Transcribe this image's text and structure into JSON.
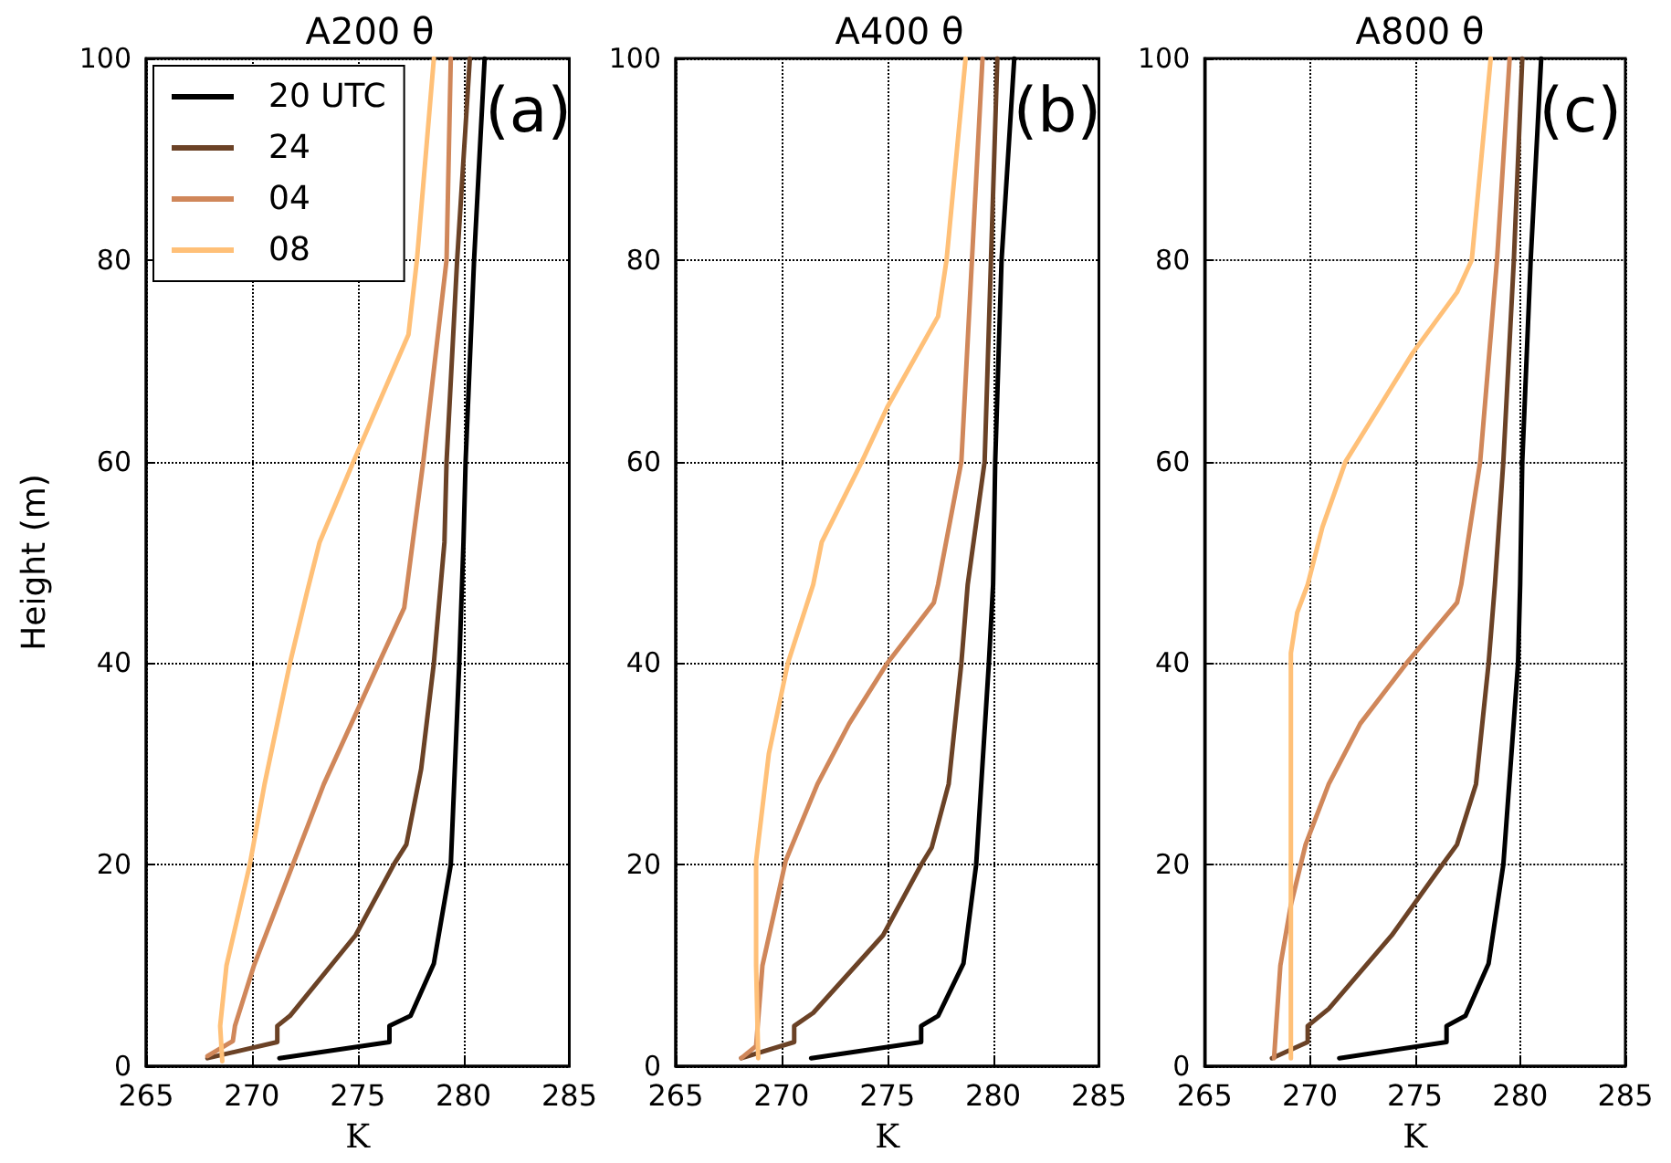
{
  "chart_data": [
    {
      "type": "line",
      "title": "A200 θ",
      "xlabel": "K",
      "ylabel": "Height (m)",
      "annotations": [
        "(a)"
      ],
      "xlim": [
        265,
        285
      ],
      "xticks": [
        265,
        270,
        275,
        280,
        285
      ],
      "ylim": [
        0,
        100
      ],
      "yticks": [
        0,
        20,
        40,
        60,
        80,
        100
      ],
      "grid": true,
      "legend": "top left",
      "line_style": "solid",
      "marker": "none",
      "series": [
        {
          "name": "20 UTC",
          "color": "#000000",
          "x": [
            271.3,
            276.5,
            276.5,
            277.5,
            278.6,
            279.4,
            279.8,
            280.0,
            280.1,
            280.5,
            281.0
          ],
          "values": [
            0.8,
            2.4,
            4,
            5,
            10.2,
            20,
            40,
            52,
            60,
            80,
            100
          ]
        },
        {
          "name": "24",
          "color": "#6b4226",
          "x": [
            267.9,
            271.2,
            271.2,
            271.8,
            274.9,
            276.7,
            277.3,
            278.0,
            278.6,
            279.1,
            279.2,
            279.7,
            280.3
          ],
          "values": [
            0.8,
            2.4,
            4,
            5,
            13,
            20,
            22,
            29.5,
            40,
            52,
            60,
            80,
            100
          ]
        },
        {
          "name": "04",
          "color": "#d0875a",
          "x": [
            267.9,
            269.1,
            269.2,
            270.1,
            271.2,
            273.4,
            276.0,
            277.2,
            277.6,
            278.1,
            279.2,
            279.4
          ],
          "values": [
            1,
            2.5,
            4,
            10,
            16,
            28,
            40,
            45.5,
            52,
            60,
            80,
            100
          ]
        },
        {
          "name": "08",
          "color": "#ffc078",
          "x": [
            268.6,
            268.5,
            268.8,
            269.9,
            270.6,
            271.8,
            272.6,
            273.2,
            274.8,
            277.4,
            277.8,
            278.6
          ],
          "values": [
            0.5,
            4,
            10,
            20,
            28,
            40,
            47,
            52,
            60,
            72.6,
            80,
            100
          ]
        }
      ]
    },
    {
      "type": "line",
      "title": "A400 θ",
      "xlabel": "K",
      "annotations": [
        "(b)"
      ],
      "xlim": [
        265,
        285
      ],
      "xticks": [
        265,
        270,
        275,
        280,
        285
      ],
      "ylim": [
        0,
        100
      ],
      "yticks": [
        0,
        20,
        40,
        60,
        80,
        100
      ],
      "grid": true,
      "line_style": "solid",
      "marker": "none",
      "series": [
        {
          "color": "#000000",
          "x": [
            271.4,
            276.6,
            276.6,
            277.4,
            278.6,
            279.2,
            279.8,
            280.0,
            280.1,
            280.4,
            281.0
          ],
          "values": [
            0.8,
            2.4,
            4,
            5,
            10.2,
            20,
            40,
            47.8,
            60,
            80,
            100
          ]
        },
        {
          "color": "#6b4226",
          "x": [
            268.1,
            270.6,
            270.6,
            271.5,
            274.8,
            276.6,
            277.1,
            277.9,
            278.5,
            278.8,
            279.6,
            279.9,
            280.2
          ],
          "values": [
            0.8,
            2.4,
            4,
            5.3,
            13,
            20,
            21.7,
            28,
            40,
            47.8,
            60,
            80,
            100
          ]
        },
        {
          "color": "#d0875a",
          "x": [
            268.1,
            268.8,
            269.1,
            270.2,
            271.7,
            273.2,
            275.0,
            277.2,
            277.4,
            278.5,
            279.0,
            279.5
          ],
          "values": [
            0.8,
            2,
            10,
            20.4,
            28,
            34,
            40,
            46,
            47.8,
            60,
            80,
            100
          ]
        },
        {
          "color": "#ffc078",
          "x": [
            268.9,
            268.8,
            268.8,
            269.4,
            270.3,
            271.5,
            271.9,
            273.8,
            275.0,
            277.4,
            277.8,
            278.7
          ],
          "values": [
            0.8,
            10,
            20.4,
            31,
            40,
            47.8,
            52,
            60,
            65.4,
            74.4,
            80,
            100
          ]
        }
      ]
    },
    {
      "type": "line",
      "title": "A800 θ",
      "xlabel": "K",
      "annotations": [
        "(c)"
      ],
      "xlim": [
        265,
        285
      ],
      "xticks": [
        265,
        270,
        275,
        280,
        285
      ],
      "ylim": [
        0,
        100
      ],
      "yticks": [
        0,
        20,
        40,
        60,
        80,
        100
      ],
      "grid": true,
      "line_style": "solid",
      "marker": "none",
      "series": [
        {
          "color": "#000000",
          "x": [
            271.4,
            276.5,
            276.5,
            277.4,
            278.5,
            279.2,
            279.9,
            280.0,
            280.1,
            280.5,
            281.0
          ],
          "values": [
            0.8,
            2.4,
            4,
            5,
            10.2,
            20,
            40,
            47.8,
            60,
            80,
            100
          ]
        },
        {
          "color": "#6b4226",
          "x": [
            268.2,
            269.9,
            269.9,
            270.9,
            273.9,
            276.3,
            277.0,
            277.9,
            278.5,
            278.8,
            279.2,
            279.7,
            280.1
          ],
          "values": [
            0.8,
            2.4,
            4,
            5.7,
            13,
            20,
            22,
            28,
            40,
            47.8,
            60,
            80,
            100
          ]
        },
        {
          "color": "#d0875a",
          "x": [
            268.3,
            268.4,
            268.6,
            269.1,
            269.8,
            270.9,
            272.4,
            274.6,
            277.0,
            277.2,
            278.1,
            278.9,
            279.5
          ],
          "values": [
            0.8,
            4,
            10,
            16,
            22,
            28,
            34,
            40,
            46,
            47.8,
            60,
            80,
            100
          ]
        },
        {
          "color": "#ffc078",
          "x": [
            269.1,
            269.1,
            269.1,
            269.1,
            269.1,
            269.4,
            269.9,
            270.6,
            271.7,
            273.3,
            274.9,
            277.0,
            277.7,
            278.6
          ],
          "values": [
            0.8,
            10,
            20,
            30,
            41,
            45,
            47.8,
            53.5,
            60,
            65.4,
            70.8,
            76.8,
            80,
            100
          ]
        }
      ]
    }
  ]
}
